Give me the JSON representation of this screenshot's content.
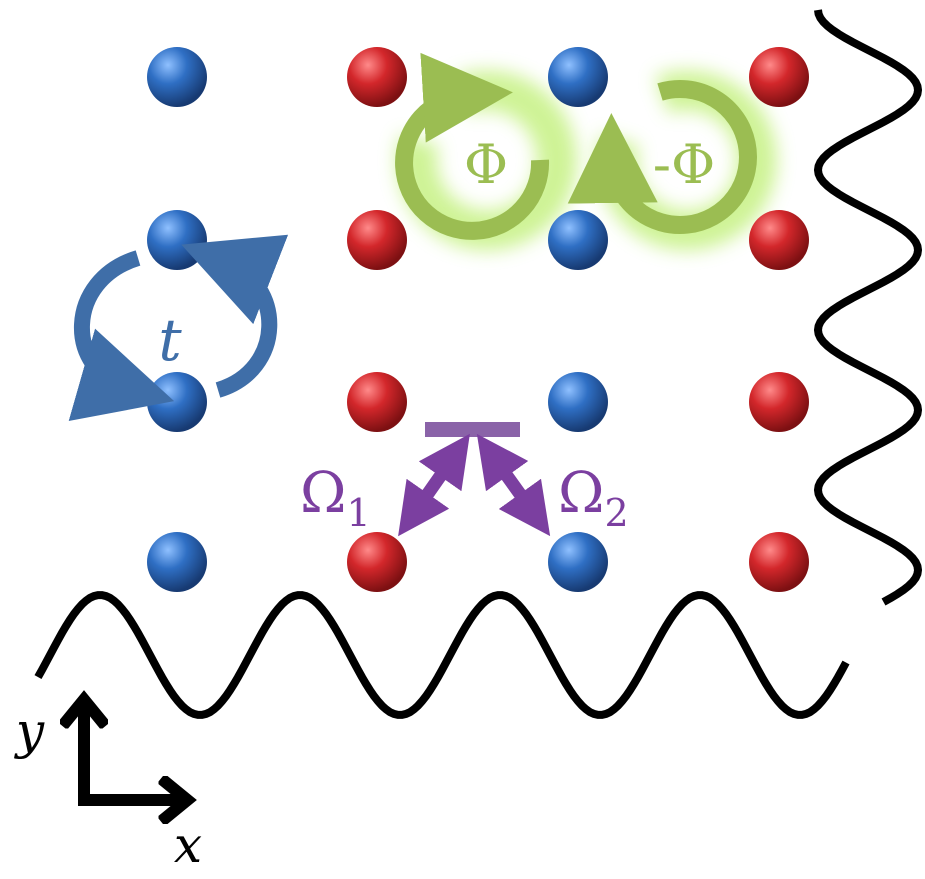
{
  "labels": {
    "hopping": "t",
    "flux_positive": "Φ",
    "flux_negative": "-Φ",
    "coupling_1_symbol": "Ω",
    "coupling_1_subscript": "1",
    "coupling_2_symbol": "Ω",
    "coupling_2_subscript": "2",
    "axis_x": "x",
    "axis_y": "y"
  },
  "lattice": {
    "rows": [
      [
        "blue",
        "red",
        "blue",
        "red"
      ],
      [
        "blue",
        "red",
        "blue",
        "red"
      ],
      [
        "blue",
        "red",
        "blue",
        "red"
      ],
      [
        "blue",
        "red",
        "blue",
        "red"
      ]
    ]
  },
  "colors": {
    "site_blue": "#2f6fc4",
    "site_red": "#d3272b",
    "hopping_arrow": "#3f6ea8",
    "flux_arrow": "#9bbd52",
    "flux_glow": "#c9f28a",
    "raman": "#7b3fa0",
    "level": "#8a63a8",
    "wave": "#000000",
    "axis": "#000000"
  }
}
